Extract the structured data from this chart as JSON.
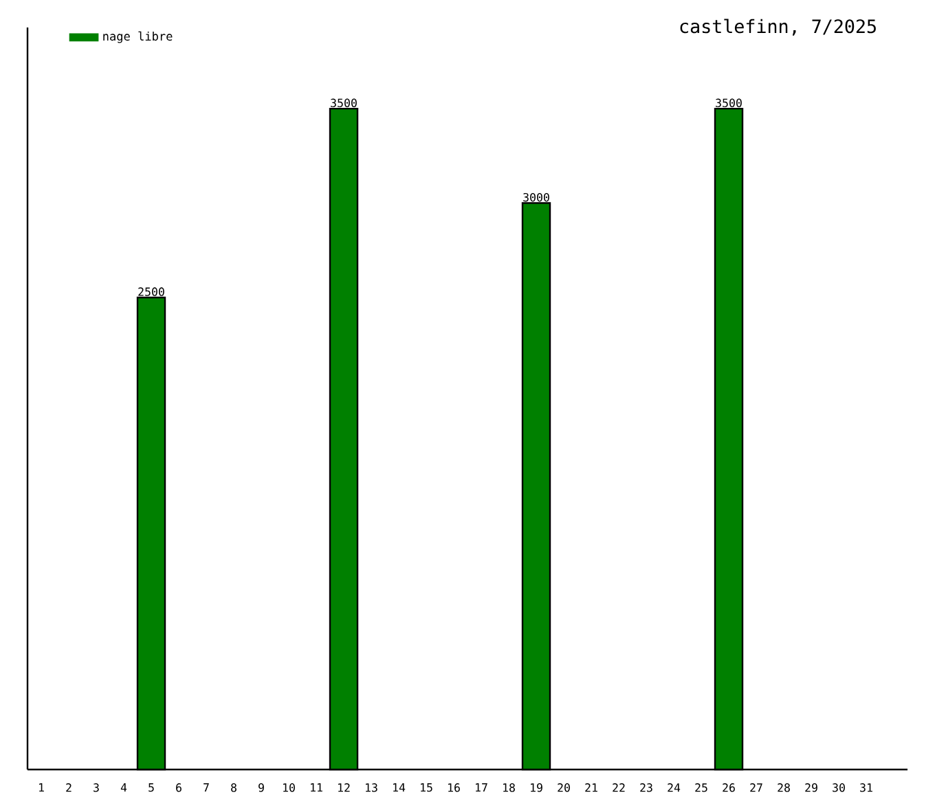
{
  "chart_data": {
    "type": "bar",
    "title": "castlefinn, 7/2025",
    "categories": [
      "1",
      "2",
      "3",
      "4",
      "5",
      "6",
      "7",
      "8",
      "9",
      "10",
      "11",
      "12",
      "13",
      "14",
      "15",
      "16",
      "17",
      "18",
      "19",
      "20",
      "21",
      "22",
      "23",
      "24",
      "25",
      "26",
      "27",
      "28",
      "29",
      "30",
      "31"
    ],
    "series": [
      {
        "name": "nage libre",
        "color": "#008000",
        "values": [
          null,
          null,
          null,
          null,
          2500,
          null,
          null,
          null,
          null,
          null,
          null,
          3500,
          null,
          null,
          null,
          null,
          null,
          null,
          3000,
          null,
          null,
          null,
          null,
          null,
          null,
          3500,
          null,
          null,
          null,
          null,
          null
        ]
      }
    ],
    "ylim": [
      0,
      3930
    ],
    "data_labels": true,
    "legend": "top left",
    "tick_labels": "x"
  }
}
